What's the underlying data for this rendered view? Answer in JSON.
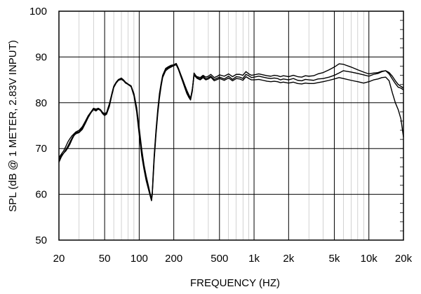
{
  "chart_data": {
    "type": "line",
    "xlabel": "FREQUENCY  (HZ)",
    "ylabel": "SPL (dB @ 1 METER, 2.83V INPUT)",
    "x_scale": "log",
    "xlim": [
      20,
      20000
    ],
    "ylim": [
      50,
      100
    ],
    "grid": true,
    "x_ticks": [
      {
        "value": 20,
        "label": "20"
      },
      {
        "value": 50,
        "label": "50"
      },
      {
        "value": 100,
        "label": "100"
      },
      {
        "value": 200,
        "label": "200"
      },
      {
        "value": 500,
        "label": "500"
      },
      {
        "value": 1000,
        "label": "1k"
      },
      {
        "value": 2000,
        "label": "2k"
      },
      {
        "value": 5000,
        "label": "5k"
      },
      {
        "value": 10000,
        "label": "10k"
      },
      {
        "value": 20000,
        "label": "20k"
      }
    ],
    "y_ticks": [
      50,
      60,
      70,
      80,
      90,
      100
    ],
    "series": [
      {
        "x": [
          20,
          21,
          22,
          23,
          24,
          25,
          26,
          27,
          28,
          30,
          32,
          34,
          36,
          38,
          40,
          42,
          44,
          46,
          48,
          50,
          52,
          55,
          58,
          60,
          63,
          66,
          70,
          73,
          76,
          80,
          85,
          90,
          95,
          100,
          105,
          110,
          115,
          120,
          125,
          128,
          130,
          132,
          135,
          140,
          145,
          150,
          155,
          160,
          170,
          180,
          190,
          200,
          210,
          220,
          230,
          240,
          250,
          260,
          270,
          280,
          290,
          300,
          320,
          340,
          360,
          380,
          400,
          420,
          450,
          480,
          500,
          550,
          600,
          650,
          700,
          750,
          800,
          850,
          900,
          950,
          1000,
          1100,
          1200,
          1300,
          1400,
          1500,
          1600,
          1700,
          1800,
          1900,
          2000,
          2200,
          2400,
          2600,
          2800,
          3000,
          3300,
          3600,
          4000,
          4500,
          5000,
          5500,
          6000,
          7000,
          8000,
          9000,
          10000,
          11000,
          12000,
          13000,
          14000,
          15000,
          16000,
          17000,
          18000,
          19000,
          20000
        ],
        "y": [
          67.5,
          68.5,
          69,
          69.5,
          70.2,
          71,
          72,
          72.8,
          73.2,
          73.5,
          74.2,
          75.5,
          76.8,
          77.8,
          78.5,
          78.2,
          78.6,
          78.3,
          77.6,
          77.2,
          77.5,
          79.2,
          81.8,
          83.3,
          84.3,
          84.9,
          85.1,
          84.8,
          84.3,
          84,
          83.5,
          81.5,
          78,
          73,
          68.5,
          65.5,
          63,
          61.2,
          59.5,
          58.6,
          60,
          63,
          67.5,
          73,
          77.5,
          81,
          83.5,
          85.5,
          87,
          87.5,
          87.8,
          88.1,
          88.3,
          87.2,
          85.8,
          84.5,
          83.2,
          82,
          81.2,
          80.6,
          82.5,
          86.5,
          85.5,
          85.2,
          85.8,
          85.2,
          85.5,
          85.8,
          85.1,
          85.4,
          85.6,
          85.2,
          85.8,
          85.1,
          85.7,
          85.6,
          85.3,
          86.2,
          85.9,
          85.5,
          85.6,
          85.8,
          85.6,
          85.4,
          85.3,
          85.4,
          85.3,
          85,
          85.2,
          85.1,
          85,
          85.3,
          84.9,
          84.8,
          85.1,
          85,
          84.9,
          85.2,
          85.3,
          85.6,
          86,
          86.5,
          87,
          86.7,
          86.4,
          86.1,
          85.8,
          86.2,
          86.4,
          86.8,
          87,
          86.3,
          85.2,
          84.2,
          83.4,
          83.2,
          82.8
        ]
      },
      {
        "x": [
          20,
          21,
          22,
          23,
          24,
          25,
          26,
          27,
          28,
          30,
          32,
          34,
          36,
          38,
          40,
          42,
          44,
          46,
          48,
          50,
          52,
          55,
          58,
          60,
          63,
          66,
          70,
          73,
          76,
          80,
          85,
          90,
          95,
          100,
          105,
          110,
          115,
          120,
          125,
          128,
          130,
          132,
          135,
          140,
          145,
          150,
          155,
          160,
          170,
          180,
          190,
          200,
          210,
          220,
          230,
          240,
          250,
          260,
          270,
          280,
          290,
          300,
          320,
          340,
          360,
          380,
          400,
          420,
          450,
          480,
          500,
          550,
          600,
          650,
          700,
          750,
          800,
          850,
          900,
          950,
          1000,
          1100,
          1200,
          1300,
          1400,
          1500,
          1600,
          1700,
          1800,
          1900,
          2000,
          2200,
          2400,
          2600,
          2800,
          3000,
          3300,
          3600,
          4000,
          4500,
          5000,
          5500,
          6000,
          7000,
          8000,
          9000,
          10000,
          11000,
          12000,
          13000,
          14000,
          15000,
          16000,
          17000,
          18000,
          19000,
          20000
        ],
        "y": [
          68,
          68.8,
          69.5,
          70.5,
          71.5,
          72.2,
          72.8,
          73.2,
          73.6,
          74,
          74.8,
          76,
          77.2,
          78,
          78.8,
          78.6,
          78.8,
          78.5,
          77.9,
          77.6,
          77.9,
          79.8,
          82.2,
          83.6,
          84.5,
          85.1,
          85.4,
          85,
          84.5,
          84.1,
          83.7,
          82,
          79,
          74.5,
          70,
          66.5,
          64,
          62,
          60,
          59,
          60.5,
          64,
          68.5,
          74,
          78.5,
          82,
          84.2,
          86,
          87.5,
          87.9,
          88.2,
          88.3,
          88.6,
          87.5,
          86.2,
          85,
          83.8,
          82.7,
          81.8,
          81,
          83,
          86,
          85.7,
          85.5,
          86,
          85.6,
          85.8,
          86.2,
          85.5,
          85.8,
          86.1,
          85.8,
          86.3,
          85.7,
          86.2,
          86.2,
          86,
          86.8,
          86.3,
          86,
          86.1,
          86.3,
          86.1,
          85.9,
          85.8,
          86,
          85.9,
          85.7,
          85.9,
          85.8,
          85.7,
          86,
          85.7,
          85.6,
          85.9,
          85.8,
          85.9,
          86.3,
          86.6,
          87.2,
          87.8,
          88.5,
          88.4,
          87.8,
          87.2,
          86.7,
          86.3,
          86.5,
          86.6,
          86.9,
          87,
          86.6,
          85.8,
          84.8,
          84,
          83.6,
          83.2
        ]
      },
      {
        "x": [
          20,
          21,
          22,
          23,
          24,
          25,
          26,
          27,
          28,
          30,
          32,
          34,
          36,
          38,
          40,
          42,
          44,
          46,
          48,
          50,
          52,
          55,
          58,
          60,
          63,
          66,
          70,
          73,
          76,
          80,
          85,
          90,
          95,
          100,
          105,
          110,
          115,
          120,
          125,
          128,
          130,
          132,
          135,
          140,
          145,
          150,
          155,
          160,
          170,
          180,
          190,
          200,
          210,
          220,
          230,
          240,
          250,
          260,
          270,
          280,
          290,
          300,
          320,
          340,
          360,
          380,
          400,
          420,
          450,
          480,
          500,
          550,
          600,
          650,
          700,
          750,
          800,
          850,
          900,
          950,
          1000,
          1100,
          1200,
          1300,
          1400,
          1500,
          1600,
          1700,
          1800,
          1900,
          2000,
          2200,
          2400,
          2600,
          2800,
          3000,
          3300,
          3600,
          4000,
          4500,
          5000,
          5500,
          6000,
          7000,
          8000,
          9000,
          10000,
          11000,
          12000,
          13000,
          14000,
          15000,
          16000,
          17000,
          18000,
          19000,
          20000
        ],
        "y": [
          67,
          68.2,
          69,
          69.8,
          70.6,
          71.5,
          72.3,
          73,
          73.4,
          73.7,
          74.5,
          75.8,
          77,
          77.9,
          78.6,
          78.4,
          78.7,
          78.4,
          77.8,
          77.4,
          77.7,
          79.5,
          82,
          83.5,
          84.4,
          85,
          85.3,
          84.9,
          84.4,
          84,
          83.6,
          81.8,
          78.5,
          74,
          69.5,
          66,
          63.5,
          61.5,
          59.8,
          58.8,
          60.2,
          63.5,
          68,
          73.5,
          78,
          81.5,
          84,
          85.8,
          87.3,
          87.7,
          88,
          88.2,
          88.4,
          87.3,
          86,
          84.8,
          83.5,
          82.3,
          81.5,
          80.8,
          82.8,
          86,
          85.3,
          85,
          85.5,
          85,
          85.2,
          85.6,
          84.8,
          85.1,
          85.3,
          84.9,
          85.4,
          84.8,
          85.3,
          85.2,
          84.9,
          85.7,
          85.3,
          85,
          85,
          85.1,
          84.9,
          84.7,
          84.6,
          84.7,
          84.6,
          84.4,
          84.5,
          84.4,
          84.3,
          84.5,
          84.2,
          84.1,
          84.3,
          84.2,
          84.2,
          84.4,
          84.6,
          84.9,
          85.2,
          85.5,
          85.3,
          84.9,
          84.6,
          84.3,
          84.6,
          85,
          85.2,
          85.5,
          85.6,
          84.8,
          82.2,
          80,
          78.5,
          76.5,
          72.5
        ]
      }
    ]
  }
}
